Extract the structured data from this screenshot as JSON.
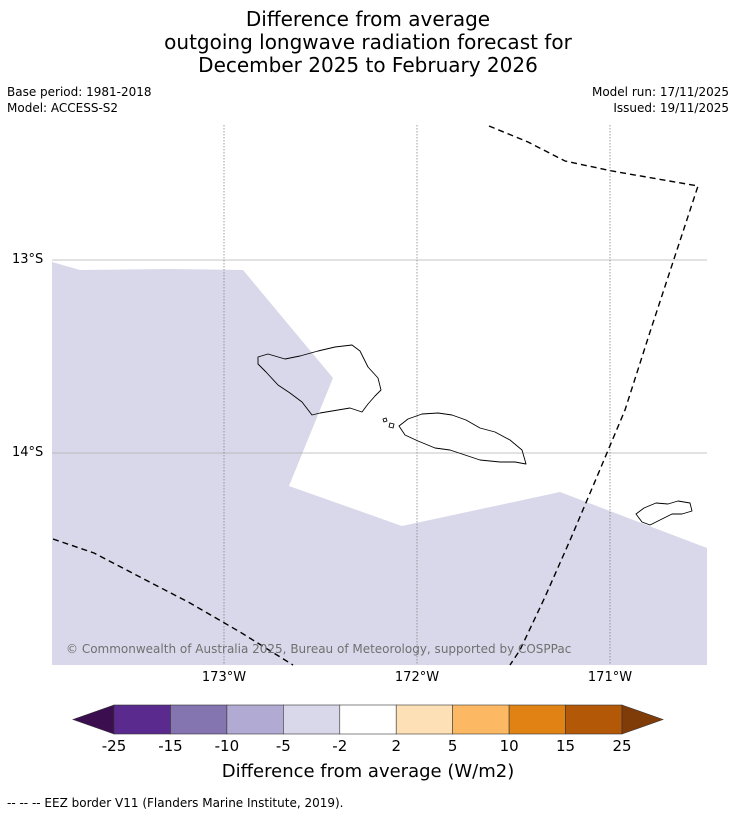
{
  "title": {
    "line1": "Difference from average",
    "line2": "outgoing longwave radiation forecast for",
    "line3": "December 2025 to February 2026"
  },
  "meta": {
    "base_period": "Base period: 1981-2018",
    "model": "Model: ACCESS-S2",
    "model_run": "Model run: 17/11/2025",
    "issued": "Issued: 19/11/2025"
  },
  "axes": {
    "lat_labels": [
      "13°S",
      "14°S"
    ],
    "lon_labels": [
      "173°W",
      "172°W",
      "171°W"
    ]
  },
  "map": {
    "background_color": "#ffffff",
    "anomaly_fill_color": "#d8d8ea",
    "coastline_color": "#000000",
    "eez_border_style": "dashed"
  },
  "copyright": "© Commonwealth of Australia 2025, Bureau of Meteorology, supported by COSPPac",
  "colorbar": {
    "tick_labels": [
      "-25",
      "-15",
      "-10",
      "-5",
      "-2",
      "2",
      "5",
      "10",
      "15",
      "25"
    ],
    "colors": {
      "under": "#3b0f4f",
      "bins": [
        "#5b2a8e",
        "#8474b0",
        "#b1aad2",
        "#d8d8ea",
        "#ffffff",
        "#fee0b6",
        "#fdb863",
        "#e08214",
        "#b35806"
      ],
      "over": "#7f3b08"
    },
    "title": "Difference from average (W/m2)"
  },
  "footnote": "--  --  -- EEZ border V11 (Flanders Marine Institute, 2019)."
}
